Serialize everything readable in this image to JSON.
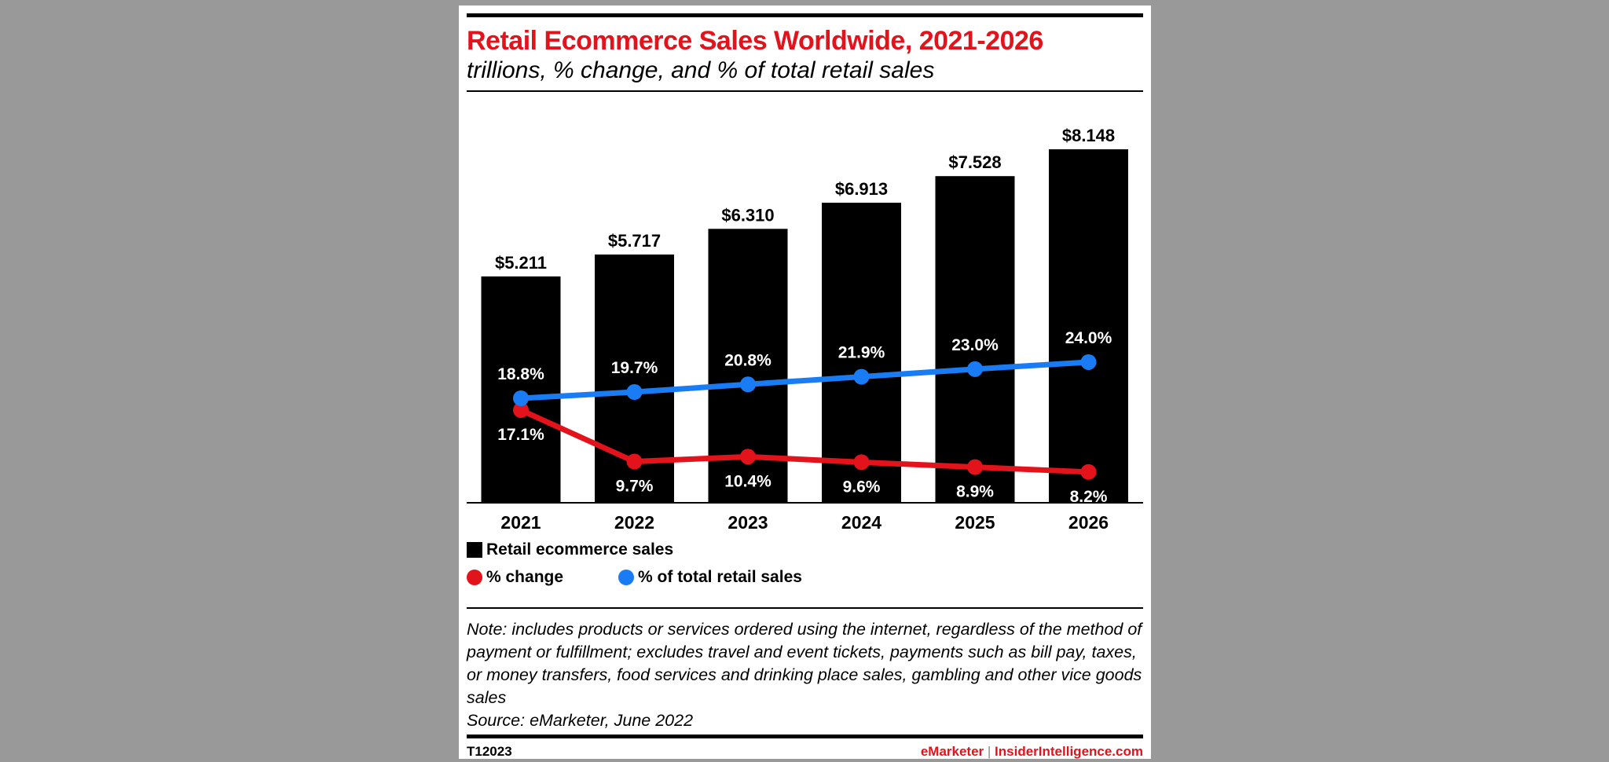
{
  "title": "Retail Ecommerce Sales Worldwide, 2021-2026",
  "subtitle": "trillions, % change, and % of total retail sales",
  "colors": {
    "bar": "#000000",
    "change": "#e3131b",
    "share": "#1a7cf5",
    "title": "#e3131b"
  },
  "chart_data": {
    "type": "bar",
    "categories": [
      "2021",
      "2022",
      "2023",
      "2024",
      "2025",
      "2026"
    ],
    "series": [
      {
        "name": "Retail ecommerce sales",
        "type": "bar",
        "values": [
          5.211,
          5.717,
          6.31,
          6.913,
          7.528,
          8.148
        ],
        "labels": [
          "$5.211",
          "$5.717",
          "$6.310",
          "$6.913",
          "$7.528",
          "$8.148"
        ]
      },
      {
        "name": "% change",
        "type": "line",
        "values": [
          17.1,
          9.7,
          10.4,
          9.6,
          8.9,
          8.2
        ],
        "labels": [
          "17.1%",
          "9.7%",
          "10.4%",
          "9.6%",
          "8.9%",
          "8.2%"
        ]
      },
      {
        "name": "% of total retail sales",
        "type": "line",
        "values": [
          18.8,
          19.7,
          20.8,
          21.9,
          23.0,
          24.0
        ],
        "labels": [
          "18.8%",
          "19.7%",
          "20.8%",
          "21.9%",
          "23.0%",
          "24.0%"
        ]
      }
    ],
    "grid": false,
    "legend_position": "bottom-left"
  },
  "legend": {
    "bar": "Retail ecommerce sales",
    "change": "% change",
    "share": "% of total retail sales"
  },
  "note": "Note: includes products or services ordered using the internet, regardless of the method of payment or fulfillment; excludes travel and event tickets, payments such as bill pay, taxes, or money transfers, food services and drinking place sales, gambling and other vice goods sales",
  "source": "Source: eMarketer, June 2022",
  "footer": {
    "id": "T12023",
    "brand": "eMarketer",
    "separator": "|",
    "site": "InsiderIntelligence.com"
  }
}
